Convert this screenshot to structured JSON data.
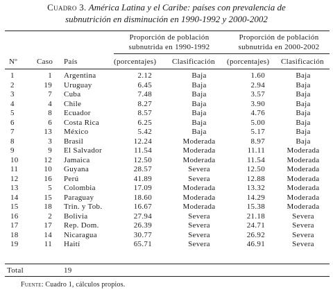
{
  "caption": {
    "lead": "Cuadro 3.",
    "title_line1": "América Latina y el Caribe: países con prevalencia de",
    "title_line2": "subnutrición en disminución en 1990-1992 y 2000-2002"
  },
  "group_headers": {
    "g1_line1": "Proporción de población",
    "g1_line2": "subnutrida en 1990-1992",
    "g2_line1": "Proporción de población",
    "g2_line2": "subnutrida en 2000-2002"
  },
  "columns": {
    "n": "Nº",
    "caso": "Caso",
    "pais": "País",
    "p1": "(porcentajes)",
    "c1": "Clasificación",
    "p2": "(porcentajes)",
    "c2": "Clasificación"
  },
  "rows": [
    {
      "n": "1",
      "caso": "1",
      "pais": "Argentina",
      "p1": "2.12",
      "c1": "Baja",
      "p2": "1.60",
      "c2": "Baja"
    },
    {
      "n": "2",
      "caso": "19",
      "pais": "Uruguay",
      "p1": "6.45",
      "c1": "Baja",
      "p2": "2.94",
      "c2": "Baja"
    },
    {
      "n": "3",
      "caso": "7",
      "pais": "Cuba",
      "p1": "7.48",
      "c1": "Baja",
      "p2": "3.57",
      "c2": "Baja"
    },
    {
      "n": "4",
      "caso": "4",
      "pais": "Chile",
      "p1": "8.27",
      "c1": "Baja",
      "p2": "3.90",
      "c2": "Baja"
    },
    {
      "n": "5",
      "caso": "8",
      "pais": "Ecuador",
      "p1": "8.57",
      "c1": "Baja",
      "p2": "4.76",
      "c2": "Baja"
    },
    {
      "n": "6",
      "caso": "6",
      "pais": "Costa Rica",
      "p1": "6.25",
      "c1": "Baja",
      "p2": "5.00",
      "c2": "Baja"
    },
    {
      "n": "7",
      "caso": "13",
      "pais": "México",
      "p1": "5.42",
      "c1": "Baja",
      "p2": "5.17",
      "c2": "Baja"
    },
    {
      "n": "8",
      "caso": "3",
      "pais": "Brasil",
      "p1": "12.24",
      "c1": "Moderada",
      "p2": "8.97",
      "c2": "Baja"
    },
    {
      "n": "9",
      "caso": "9",
      "pais": "El Salvador",
      "p1": "11.54",
      "c1": "Moderada",
      "p2": "11.11",
      "c2": "Moderada"
    },
    {
      "n": "10",
      "caso": "12",
      "pais": "Jamaica",
      "p1": "12.50",
      "c1": "Moderada",
      "p2": "11.54",
      "c2": "Moderada"
    },
    {
      "n": "11",
      "caso": "10",
      "pais": "Guyana",
      "p1": "28.57",
      "c1": "Severa",
      "p2": "12.50",
      "c2": "Moderada"
    },
    {
      "n": "12",
      "caso": "16",
      "pais": "Perú",
      "p1": "41.89",
      "c1": "Severa",
      "p2": "12.88",
      "c2": "Moderada"
    },
    {
      "n": "13",
      "caso": "5",
      "pais": "Colombia",
      "p1": "17.09",
      "c1": "Moderada",
      "p2": "13.32",
      "c2": "Moderada"
    },
    {
      "n": "14",
      "caso": "15",
      "pais": "Paraguay",
      "p1": "18.60",
      "c1": "Moderada",
      "p2": "14.29",
      "c2": "Moderada"
    },
    {
      "n": "15",
      "caso": "18",
      "pais": "Trin. y Tob.",
      "p1": "16.67",
      "c1": "Moderada",
      "p2": "15.38",
      "c2": "Moderada"
    },
    {
      "n": "16",
      "caso": "2",
      "pais": "Bolivia",
      "p1": "27.94",
      "c1": "Severa",
      "p2": "21.18",
      "c2": "Severa"
    },
    {
      "n": "17",
      "caso": "17",
      "pais": "Rep. Dom.",
      "p1": "26.39",
      "c1": "Severa",
      "p2": "24.71",
      "c2": "Severa"
    },
    {
      "n": "18",
      "caso": "14",
      "pais": "Nicaragua",
      "p1": "30.77",
      "c1": "Severa",
      "p2": "26.92",
      "c2": "Severa"
    },
    {
      "n": "19",
      "caso": "11",
      "pais": "Haití",
      "p1": "65.71",
      "c1": "Severa",
      "p2": "46.91",
      "c2": "Severa"
    }
  ],
  "total": {
    "label": "Total",
    "value": "19"
  },
  "note": {
    "source_label": "Fuente:",
    "text": "Cuadro 1, cálculos propios."
  }
}
